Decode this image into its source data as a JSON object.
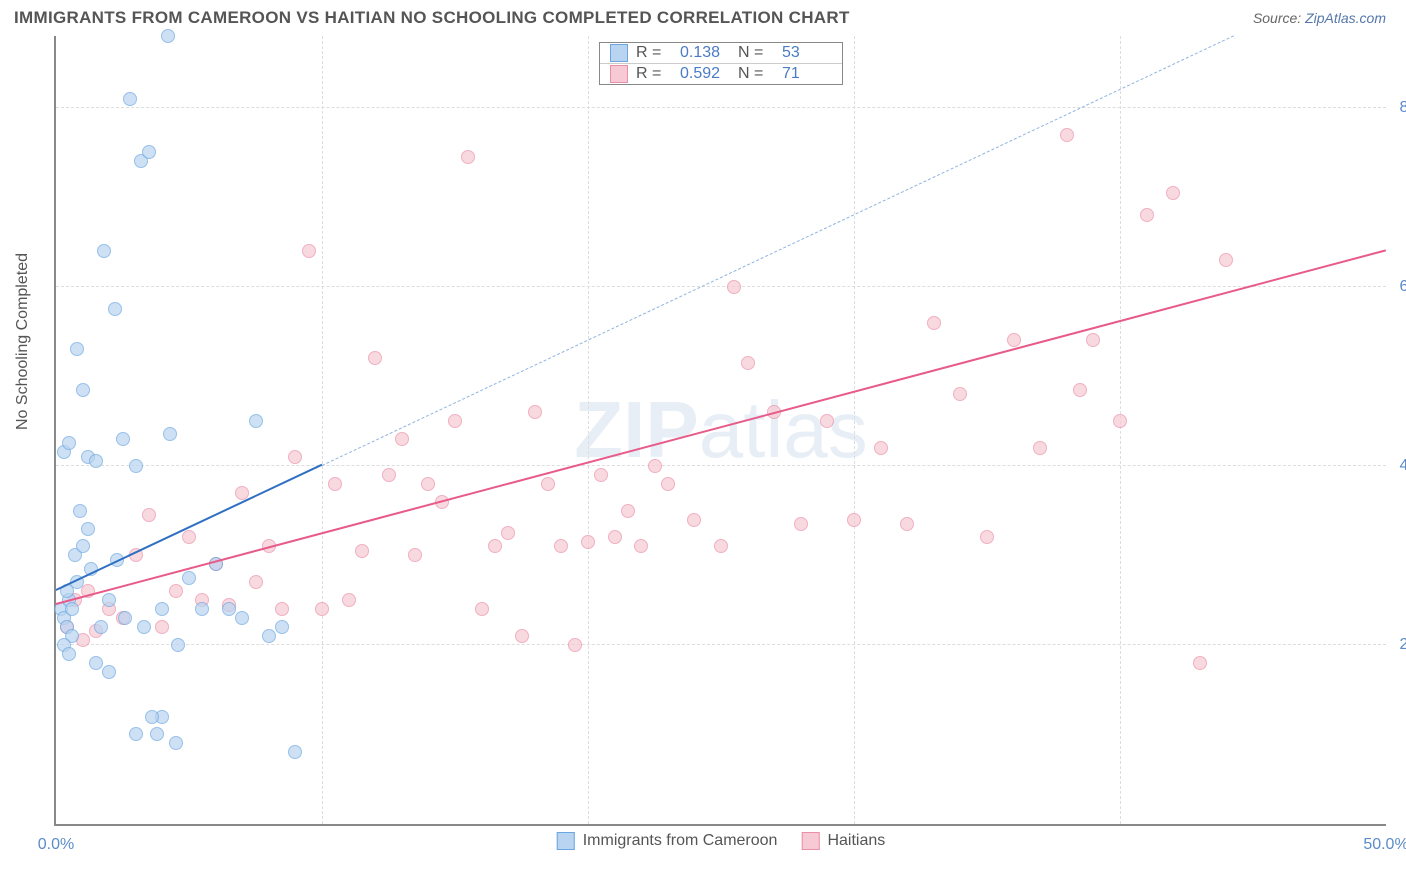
{
  "header": {
    "title": "IMMIGRANTS FROM CAMEROON VS HAITIAN NO SCHOOLING COMPLETED CORRELATION CHART",
    "source_prefix": "Source: ",
    "source_name": "ZipAtlas.com"
  },
  "watermark": {
    "text_bold": "ZIP",
    "text_light": "atlas",
    "color": "rgba(120,160,200,0.18)"
  },
  "chart": {
    "type": "scatter",
    "ylabel": "No Schooling Completed",
    "xlim": [
      0,
      50
    ],
    "ylim": [
      0,
      8.8
    ],
    "x_ticks": [
      0,
      10,
      20,
      30,
      40,
      50
    ],
    "x_tick_labels": [
      "0.0%",
      "",
      "",
      "",
      "",
      "50.0%"
    ],
    "y_ticks": [
      2,
      4,
      6,
      8
    ],
    "y_tick_labels": [
      "2.0%",
      "4.0%",
      "6.0%",
      "8.0%"
    ],
    "grid_color": "#dddddd",
    "background_color": "#ffffff",
    "axis_color": "#888888",
    "tick_label_color": "#5b8bc9",
    "label_fontsize": 16
  },
  "series": {
    "cameroon": {
      "label": "Immigrants from Cameroon",
      "fill": "#b9d4f0",
      "stroke": "#6ca6e0",
      "trend_color": "#2f6fc2",
      "R": "0.138",
      "N": "53",
      "trend": {
        "x1": 0,
        "y1": 2.6,
        "x2": 10,
        "y2": 4.0,
        "x2_ext": 50,
        "y2_ext": 9.6
      },
      "points": [
        [
          0.2,
          2.4
        ],
        [
          0.3,
          2.3
        ],
        [
          0.4,
          2.2
        ],
        [
          0.5,
          2.5
        ],
        [
          0.6,
          2.1
        ],
        [
          0.7,
          3.0
        ],
        [
          0.3,
          2.0
        ],
        [
          0.4,
          2.6
        ],
        [
          0.5,
          1.9
        ],
        [
          0.6,
          2.4
        ],
        [
          0.8,
          2.7
        ],
        [
          1.0,
          3.1
        ],
        [
          1.2,
          3.3
        ],
        [
          1.5,
          1.8
        ],
        [
          1.7,
          2.2
        ],
        [
          2.0,
          2.5
        ],
        [
          2.2,
          5.75
        ],
        [
          2.5,
          4.3
        ],
        [
          2.8,
          8.1
        ],
        [
          3.0,
          4.0
        ],
        [
          3.2,
          7.4
        ],
        [
          3.5,
          7.5
        ],
        [
          3.8,
          1.0
        ],
        [
          4.0,
          1.2
        ],
        [
          4.2,
          8.8
        ],
        [
          4.5,
          0.9
        ],
        [
          0.8,
          5.3
        ],
        [
          1.0,
          4.85
        ],
        [
          1.2,
          4.1
        ],
        [
          1.5,
          4.05
        ],
        [
          0.3,
          4.15
        ],
        [
          0.5,
          4.25
        ],
        [
          1.8,
          6.4
        ],
        [
          2.0,
          1.7
        ],
        [
          2.3,
          2.95
        ],
        [
          2.6,
          2.3
        ],
        [
          3.0,
          1.0
        ],
        [
          3.3,
          2.2
        ],
        [
          3.6,
          1.2
        ],
        [
          4.0,
          2.4
        ],
        [
          4.3,
          4.35
        ],
        [
          4.6,
          2.0
        ],
        [
          5.0,
          2.75
        ],
        [
          5.5,
          2.4
        ],
        [
          6.0,
          2.9
        ],
        [
          6.5,
          2.4
        ],
        [
          7.0,
          2.3
        ],
        [
          7.5,
          4.5
        ],
        [
          8.0,
          2.1
        ],
        [
          8.5,
          2.2
        ],
        [
          9.0,
          0.8
        ],
        [
          0.9,
          3.5
        ],
        [
          1.3,
          2.85
        ]
      ]
    },
    "haitians": {
      "label": "Haitians",
      "fill": "#f7c9d4",
      "stroke": "#e98fa8",
      "trend_color": "#e85a8a",
      "R": "0.592",
      "N": "71",
      "trend": {
        "x1": 0,
        "y1": 2.45,
        "x2": 50,
        "y2": 6.4
      },
      "points": [
        [
          1.0,
          2.05
        ],
        [
          1.5,
          2.15
        ],
        [
          2.0,
          2.4
        ],
        [
          2.5,
          2.3
        ],
        [
          3.0,
          3.0
        ],
        [
          3.5,
          3.45
        ],
        [
          4.0,
          2.2
        ],
        [
          4.5,
          2.6
        ],
        [
          5.0,
          3.2
        ],
        [
          5.5,
          2.5
        ],
        [
          6.0,
          2.9
        ],
        [
          6.5,
          2.45
        ],
        [
          7.0,
          3.7
        ],
        [
          7.5,
          2.7
        ],
        [
          8.0,
          3.1
        ],
        [
          8.5,
          2.4
        ],
        [
          9.0,
          4.1
        ],
        [
          9.5,
          6.4
        ],
        [
          10.0,
          2.4
        ],
        [
          10.5,
          3.8
        ],
        [
          11.0,
          2.5
        ],
        [
          11.5,
          3.05
        ],
        [
          12.0,
          5.2
        ],
        [
          12.5,
          3.9
        ],
        [
          13.0,
          4.3
        ],
        [
          13.5,
          3.0
        ],
        [
          14.0,
          3.8
        ],
        [
          14.5,
          3.6
        ],
        [
          15.0,
          4.5
        ],
        [
          15.5,
          7.45
        ],
        [
          16.0,
          2.4
        ],
        [
          16.5,
          3.1
        ],
        [
          17.0,
          3.25
        ],
        [
          17.5,
          2.1
        ],
        [
          18.0,
          4.6
        ],
        [
          18.5,
          3.8
        ],
        [
          19.0,
          3.1
        ],
        [
          19.5,
          2.0
        ],
        [
          20.0,
          3.15
        ],
        [
          20.5,
          3.9
        ],
        [
          21.0,
          3.2
        ],
        [
          21.5,
          3.5
        ],
        [
          22.0,
          3.1
        ],
        [
          22.5,
          4.0
        ],
        [
          23.0,
          3.8
        ],
        [
          24.0,
          3.4
        ],
        [
          25.0,
          3.1
        ],
        [
          25.5,
          6.0
        ],
        [
          26.0,
          5.15
        ],
        [
          27.0,
          4.6
        ],
        [
          28.0,
          3.35
        ],
        [
          29.0,
          4.5
        ],
        [
          30.0,
          3.4
        ],
        [
          31.0,
          4.2
        ],
        [
          32.0,
          3.35
        ],
        [
          33.0,
          5.6
        ],
        [
          34.0,
          4.8
        ],
        [
          35.0,
          3.2
        ],
        [
          36.0,
          5.4
        ],
        [
          37.0,
          4.2
        ],
        [
          38.0,
          7.7
        ],
        [
          38.5,
          4.85
        ],
        [
          39.0,
          5.4
        ],
        [
          40.0,
          4.5
        ],
        [
          41.0,
          6.8
        ],
        [
          42.0,
          7.05
        ],
        [
          43.0,
          1.8
        ],
        [
          44.0,
          6.3
        ],
        [
          0.7,
          2.5
        ],
        [
          0.4,
          2.2
        ],
        [
          1.2,
          2.6
        ]
      ]
    }
  },
  "legend": {
    "r_label": "R  =",
    "n_label": "N  ="
  }
}
